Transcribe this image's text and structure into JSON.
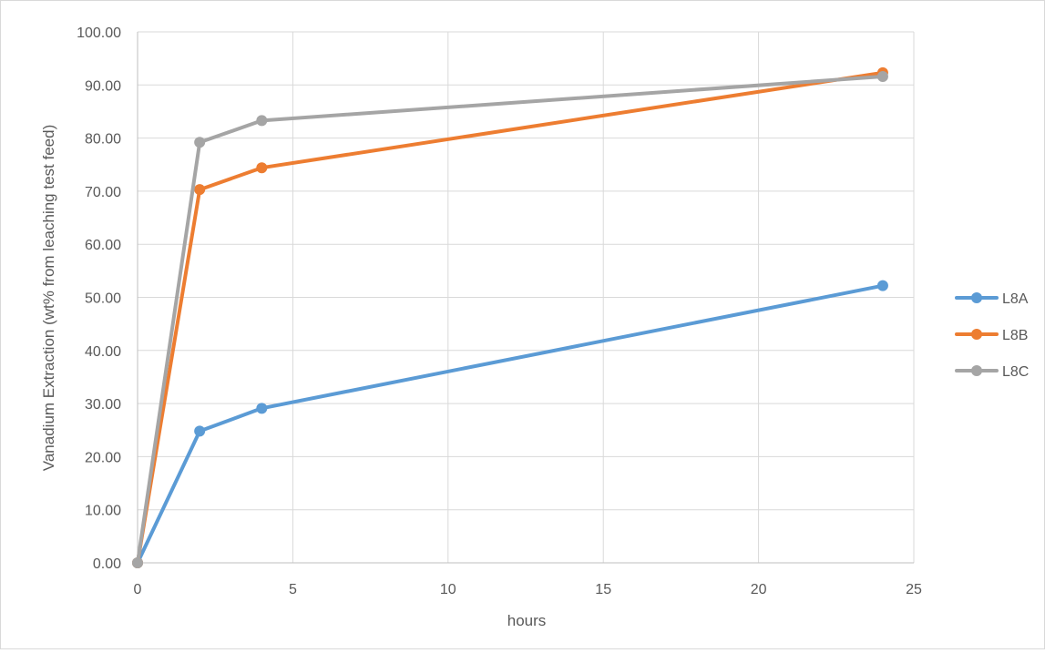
{
  "chart_data": {
    "type": "line",
    "title": "",
    "xlabel": "hours",
    "ylabel": "Vanadium Extraction (wt% from leaching test feed)",
    "xlim": [
      0,
      25
    ],
    "ylim": [
      0,
      100
    ],
    "xticks": [
      0,
      5,
      10,
      15,
      20,
      25
    ],
    "yticks": [
      0,
      10,
      20,
      30,
      40,
      50,
      60,
      70,
      80,
      90,
      100
    ],
    "x_tick_labels": [
      "0",
      "5",
      "10",
      "15",
      "20",
      "25"
    ],
    "y_tick_labels": [
      "0.00",
      "10.00",
      "20.00",
      "30.00",
      "40.00",
      "50.00",
      "60.00",
      "70.00",
      "80.00",
      "90.00",
      "100.00"
    ],
    "grid": true,
    "legend_position": "right",
    "series": [
      {
        "name": "L8A",
        "color": "#5b9bd5",
        "x": [
          0,
          2,
          4,
          24
        ],
        "y": [
          0.0,
          24.8,
          29.1,
          52.2
        ]
      },
      {
        "name": "L8B",
        "color": "#ed7d31",
        "x": [
          0,
          2,
          4,
          24
        ],
        "y": [
          0.0,
          70.3,
          74.4,
          92.3
        ]
      },
      {
        "name": "L8C",
        "color": "#a5a5a5",
        "x": [
          0,
          2,
          4,
          24
        ],
        "y": [
          0.0,
          79.2,
          83.3,
          91.6
        ]
      }
    ]
  }
}
